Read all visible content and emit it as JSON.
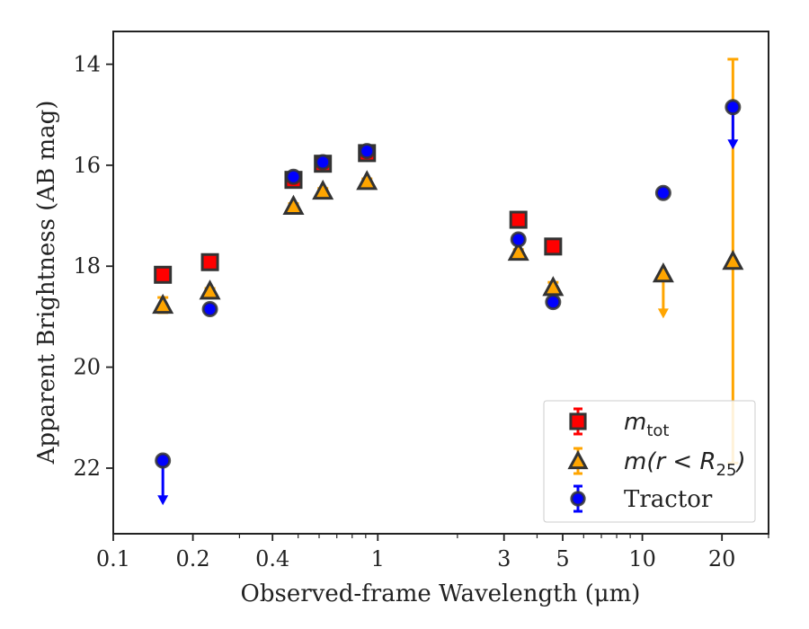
{
  "chart_data": {
    "type": "scatter",
    "title": "",
    "xlabel": "Observed-frame Wavelength (μm)",
    "ylabel": "Apparent Brightness (AB mag)",
    "xscale": "log",
    "xlim": [
      0.1,
      30
    ],
    "ylim": [
      23.3,
      13.35
    ],
    "y_inverted": true,
    "x_ticks": [
      0.1,
      0.2,
      0.4,
      1,
      3,
      5,
      10,
      20
    ],
    "x_tick_labels": [
      "0.1",
      "0.2",
      "0.4",
      "1",
      "3",
      "5",
      "10",
      "20"
    ],
    "y_ticks": [
      14,
      16,
      18,
      20,
      22
    ],
    "y_tick_labels": [
      "14",
      "16",
      "18",
      "20",
      "22"
    ],
    "grid": false,
    "legend": {
      "position": "lower-right",
      "entries": [
        {
          "series": "mtot",
          "main": "m",
          "sub": "tot",
          "tail": ""
        },
        {
          "series": "mr25",
          "main": "m(r < R",
          "sub": "25",
          "tail": ")"
        },
        {
          "series": "tractor",
          "main": "Tractor",
          "sub": "",
          "tail": ""
        }
      ]
    },
    "series": [
      {
        "key": "mtot",
        "marker": "square",
        "color": "#ff0000",
        "edgecolor": "#222222",
        "points": [
          {
            "x": 0.154,
            "y": 18.17,
            "err": 0.05
          },
          {
            "x": 0.232,
            "y": 17.92,
            "err": 0.05
          },
          {
            "x": 0.48,
            "y": 16.29,
            "err": 0.05
          },
          {
            "x": 0.62,
            "y": 15.97,
            "err": 0.05
          },
          {
            "x": 0.91,
            "y": 15.76,
            "err": 0.05
          },
          {
            "x": 3.4,
            "y": 17.08,
            "err": 0.05
          },
          {
            "x": 4.6,
            "y": 17.61,
            "err": 0.05
          }
        ]
      },
      {
        "key": "mr25",
        "marker": "triangle",
        "color": "#ffa500",
        "edgecolor": "#222222",
        "points": [
          {
            "x": 0.154,
            "y": 18.77,
            "err": 0.15
          },
          {
            "x": 0.232,
            "y": 18.49,
            "err": 0.05
          },
          {
            "x": 0.48,
            "y": 16.81,
            "err": 0.05
          },
          {
            "x": 0.62,
            "y": 16.51,
            "err": 0.05
          },
          {
            "x": 0.91,
            "y": 16.32,
            "err": 0.05
          },
          {
            "x": 3.4,
            "y": 17.72,
            "err": 0.05
          },
          {
            "x": 4.6,
            "y": 18.42,
            "err": 0.1
          },
          {
            "x": 12.0,
            "y": 18.15,
            "upper_limit_to": 19.0
          },
          {
            "x": 22.0,
            "y": 17.9,
            "err_low": 4.0,
            "err_high": 4.0
          }
        ]
      },
      {
        "key": "tractor",
        "marker": "circle",
        "color": "#0000ff",
        "edgecolor": "#222222",
        "points": [
          {
            "x": 0.154,
            "y": 21.85,
            "upper_limit_to": 22.7
          },
          {
            "x": 0.232,
            "y": 18.85,
            "err": 0.05
          },
          {
            "x": 0.48,
            "y": 16.23,
            "err": 0.05
          },
          {
            "x": 0.62,
            "y": 15.94,
            "err": 0.05
          },
          {
            "x": 0.91,
            "y": 15.72,
            "err": 0.05
          },
          {
            "x": 3.4,
            "y": 17.47,
            "err": 0.05
          },
          {
            "x": 4.6,
            "y": 18.71,
            "err": 0.05
          },
          {
            "x": 12.0,
            "y": 16.55,
            "err": 0.05
          },
          {
            "x": 22.0,
            "y": 14.85,
            "upper_limit_to": 15.65
          }
        ]
      }
    ]
  }
}
